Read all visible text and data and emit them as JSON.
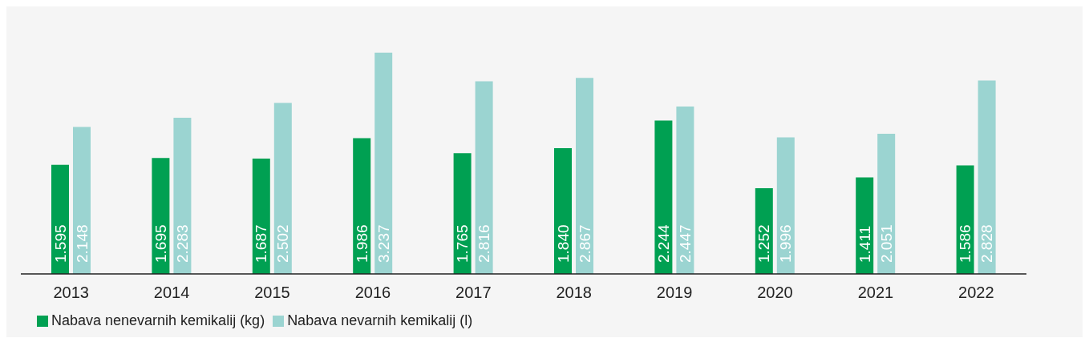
{
  "chart_data": {
    "type": "bar",
    "categories": [
      "2013",
      "2014",
      "2015",
      "2016",
      "2017",
      "2018",
      "2019",
      "2020",
      "2021",
      "2022"
    ],
    "series": [
      {
        "name": "Nabava nenevarnih kemikalij (kg)",
        "color": "#00a052",
        "values": [
          1595,
          1695,
          1687,
          1986,
          1765,
          1840,
          2244,
          1252,
          1411,
          1586
        ],
        "value_labels": [
          "1.595",
          "1.695",
          "1.687",
          "1.986",
          "1.765",
          "1.840",
          "2.244",
          "1.252",
          "1.411",
          "1.586"
        ]
      },
      {
        "name": "Nabava nevarnih kemikalij (l)",
        "color": "#9bd4d1",
        "values": [
          2148,
          2283,
          2502,
          3237,
          2816,
          2867,
          2447,
          1996,
          2051,
          2828
        ],
        "value_labels": [
          "2.148",
          "2.283",
          "2.502",
          "3.237",
          "2.816",
          "2.867",
          "2.447",
          "1.996",
          "2.051",
          "2.828"
        ]
      }
    ],
    "legend": "bottom left",
    "grid": false
  }
}
